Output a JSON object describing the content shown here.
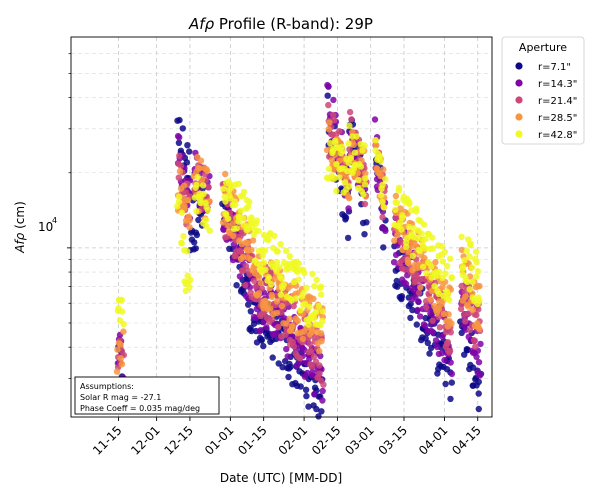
{
  "chart_data": {
    "type": "scatter",
    "title_italic": "Afρ",
    "title_rest": " Profile (R-band): 29P",
    "xlabel": "Date (UTC) [MM-DD]",
    "ylabel_italic": "Afρ",
    "ylabel_rest": " (cm)",
    "y_scale": "log",
    "ylim": [
      2100,
      70000
    ],
    "y_major_tick_label": "10",
    "y_major_tick_exp": "4",
    "x_range_days": [
      -20,
      157
    ],
    "x_ticks": [
      {
        "day": 0,
        "label": "11-15"
      },
      {
        "day": 16,
        "label": "12-01"
      },
      {
        "day": 30,
        "label": "12-15"
      },
      {
        "day": 47,
        "label": "01-01"
      },
      {
        "day": 61,
        "label": "01-15"
      },
      {
        "day": 78,
        "label": "02-01"
      },
      {
        "day": 92,
        "label": "02-15"
      },
      {
        "day": 106,
        "label": "03-01"
      },
      {
        "day": 120,
        "label": "03-15"
      },
      {
        "day": 137,
        "label": "04-01"
      },
      {
        "day": 151,
        "label": "04-15"
      }
    ],
    "grid": true,
    "legend": {
      "title": "Aperture",
      "position": "outside-right-top",
      "entries": [
        "r=7.1\"",
        "r=14.3\"",
        "r=21.4\"",
        "r=28.5\"",
        "r=42.8\""
      ]
    },
    "series": [
      {
        "name": "r=7.1\"",
        "color": "#0d0887",
        "segments": [
          {
            "start": -0.5,
            "end": 2,
            "start_value": 3100,
            "end_value": 3400
          },
          {
            "start": 25,
            "end": 30,
            "start_value": 28000,
            "end_value": 20000
          },
          {
            "start": 30,
            "end": 36,
            "start_value": 12000,
            "end_value": 14000
          },
          {
            "start": 44,
            "end": 60,
            "start_value": 14000,
            "end_value": 4200
          },
          {
            "start": 60,
            "end": 86,
            "start_value": 5200,
            "end_value": 2500
          },
          {
            "start": 88,
            "end": 97,
            "start_value": 34000,
            "end_value": 13000
          },
          {
            "start": 97,
            "end": 104,
            "start_value": 30000,
            "end_value": 14000
          },
          {
            "start": 108,
            "end": 112,
            "start_value": 26000,
            "end_value": 11000
          },
          {
            "start": 116,
            "end": 140,
            "start_value": 9000,
            "end_value": 3000
          },
          {
            "start": 144,
            "end": 152,
            "start_value": 5000,
            "end_value": 2800
          }
        ]
      },
      {
        "name": "r=14.3\"",
        "color": "#7e03a8",
        "segments": [
          {
            "start": -0.5,
            "end": 2,
            "start_value": 3600,
            "end_value": 3800
          },
          {
            "start": 25,
            "end": 30,
            "start_value": 25000,
            "end_value": 15000
          },
          {
            "start": 32,
            "end": 38,
            "start_value": 20000,
            "end_value": 16000
          },
          {
            "start": 44,
            "end": 60,
            "start_value": 15000,
            "end_value": 5500
          },
          {
            "start": 60,
            "end": 86,
            "start_value": 6500,
            "end_value": 3000
          },
          {
            "start": 88,
            "end": 97,
            "start_value": 38000,
            "end_value": 17000
          },
          {
            "start": 97,
            "end": 104,
            "start_value": 28000,
            "end_value": 17000
          },
          {
            "start": 108,
            "end": 112,
            "start_value": 26000,
            "end_value": 13000
          },
          {
            "start": 116,
            "end": 140,
            "start_value": 11000,
            "end_value": 3800
          },
          {
            "start": 144,
            "end": 152,
            "start_value": 6500,
            "end_value": 3800
          }
        ]
      },
      {
        "name": "r=21.4\"",
        "color": "#cc4778",
        "segments": [
          {
            "start": -0.5,
            "end": 2,
            "start_value": 3500,
            "end_value": 3500
          },
          {
            "start": 25,
            "end": 30,
            "start_value": 20000,
            "end_value": 14000
          },
          {
            "start": 32,
            "end": 38,
            "start_value": 19000,
            "end_value": 16000
          },
          {
            "start": 44,
            "end": 60,
            "start_value": 15000,
            "end_value": 6500
          },
          {
            "start": 60,
            "end": 86,
            "start_value": 7000,
            "end_value": 3600
          },
          {
            "start": 88,
            "end": 97,
            "start_value": 30000,
            "end_value": 20000
          },
          {
            "start": 97,
            "end": 104,
            "start_value": 28000,
            "end_value": 18000
          },
          {
            "start": 108,
            "end": 112,
            "start_value": 25000,
            "end_value": 14000
          },
          {
            "start": 116,
            "end": 140,
            "start_value": 12000,
            "end_value": 4500
          },
          {
            "start": 144,
            "end": 152,
            "start_value": 7000,
            "end_value": 4500
          }
        ]
      },
      {
        "name": "r=28.5\"",
        "color": "#f89540",
        "segments": [
          {
            "start": -0.5,
            "end": 2,
            "start_value": 3600,
            "end_value": 3600
          },
          {
            "start": 25,
            "end": 30,
            "start_value": 18000,
            "end_value": 11000
          },
          {
            "start": 32,
            "end": 38,
            "start_value": 19000,
            "end_value": 16000
          },
          {
            "start": 44,
            "end": 60,
            "start_value": 16000,
            "end_value": 7500
          },
          {
            "start": 60,
            "end": 86,
            "start_value": 7500,
            "end_value": 4500
          },
          {
            "start": 88,
            "end": 97,
            "start_value": 26000,
            "end_value": 19000
          },
          {
            "start": 97,
            "end": 104,
            "start_value": 27000,
            "end_value": 19000
          },
          {
            "start": 108,
            "end": 112,
            "start_value": 24000,
            "end_value": 15000
          },
          {
            "start": 116,
            "end": 140,
            "start_value": 13000,
            "end_value": 5500
          },
          {
            "start": 144,
            "end": 152,
            "start_value": 8000,
            "end_value": 5500
          }
        ]
      },
      {
        "name": "r=42.8\"",
        "color": "#f0f921",
        "segments": [
          {
            "start": -0.5,
            "end": 2,
            "start_value": 4900,
            "end_value": 4900
          },
          {
            "start": 25,
            "end": 30,
            "start_value": 15000,
            "end_value": 6000
          },
          {
            "start": 32,
            "end": 38,
            "start_value": 16000,
            "end_value": 15000
          },
          {
            "start": 44,
            "end": 60,
            "start_value": 18000,
            "end_value": 10000
          },
          {
            "start": 60,
            "end": 86,
            "start_value": 10000,
            "end_value": 5500
          },
          {
            "start": 88,
            "end": 97,
            "start_value": 23000,
            "end_value": 19000
          },
          {
            "start": 97,
            "end": 104,
            "start_value": 25000,
            "end_value": 20000
          },
          {
            "start": 108,
            "end": 112,
            "start_value": 22000,
            "end_value": 16000
          },
          {
            "start": 116,
            "end": 140,
            "start_value": 15000,
            "end_value": 7000
          },
          {
            "start": 144,
            "end": 152,
            "start_value": 9500,
            "end_value": 7000
          }
        ]
      }
    ],
    "annotation_lines": [
      "Assumptions:",
      "Solar R mag = -27.1",
      "Phase Coeff = 0.035 mag/deg"
    ]
  }
}
